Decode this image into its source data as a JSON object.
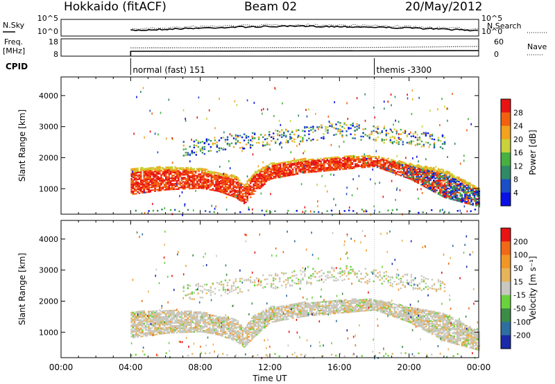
{
  "header": {
    "station": "Hokkaido (fitACF)",
    "beam": "Beam 02",
    "date": "20/May/2012"
  },
  "top_panels": {
    "nsky_label": "N.Sky",
    "nsearch_label": "N.Search",
    "freq_label_1": "Freq.",
    "freq_label_2": "[MHz]",
    "nave_label": "Nave",
    "cpid_label": "CPID",
    "noise_ticks": [
      "10^5",
      "10^0"
    ],
    "freq_ticks": [
      "18",
      "8"
    ],
    "nave_ticks": [
      "60",
      "0"
    ],
    "cpid_segments": [
      {
        "start_h": 4.0,
        "label": "normal (fast) 151"
      },
      {
        "start_h": 18.0,
        "label": "themis -3300"
      }
    ]
  },
  "xaxis": {
    "label": "Time UT",
    "ticks": [
      "00:00",
      "04:00",
      "08:00",
      "12:00",
      "16:00",
      "20:00",
      "00:00"
    ],
    "tick_hours": [
      0,
      4,
      8,
      12,
      16,
      20,
      24
    ]
  },
  "power_panel": {
    "ylabel": "Slant Range [km]",
    "yticks": [
      "1000",
      "2000",
      "3000",
      "4000"
    ],
    "ytick_values": [
      1000,
      2000,
      3000,
      4000
    ],
    "cbar_label": "Power [dB]",
    "cbar_ticks": [
      "4",
      "8",
      "12",
      "16",
      "20",
      "24",
      "28"
    ],
    "cbar_colors": [
      "#0a10e6",
      "#1c4ec8",
      "#2f8a66",
      "#46b040",
      "#c8d23a",
      "#f2a21c",
      "#f26010",
      "#e81414"
    ]
  },
  "velocity_panel": {
    "ylabel": "Slant Range [km]",
    "yticks": [
      "1000",
      "2000",
      "3000",
      "4000"
    ],
    "ytick_values": [
      1000,
      2000,
      3000,
      4000
    ],
    "cbar_label": "Velocity [m s⁻¹]",
    "cbar_ticks": [
      "200",
      "100",
      "50",
      "15",
      "-15",
      "-50",
      "-100",
      "-200"
    ],
    "cbar_colors": [
      "#1a2aa8",
      "#2f6ea0",
      "#3c8c46",
      "#6ad23c",
      "#c8c8c0",
      "#e6b45a",
      "#f29626",
      "#f06818",
      "#e81414"
    ]
  },
  "chart_data": {
    "type": "heatmap",
    "title": "Hokkaido (fitACF)  Beam 02  20/May/2012",
    "xlabel": "Time UT",
    "ylabel": "Slant Range [km]",
    "xlim_hours": [
      0,
      24
    ],
    "ylim_km": [
      180,
      4600
    ],
    "data_start_hour": 4.0,
    "main_echo_band": {
      "hours": [
        4,
        6,
        8,
        9,
        10,
        10.5,
        11,
        12,
        14,
        16,
        18,
        20,
        22,
        24
      ],
      "lower_km": [
        800,
        950,
        1000,
        900,
        700,
        500,
        800,
        1300,
        1500,
        1600,
        1700,
        1300,
        700,
        400
      ],
      "upper_km": [
        1650,
        1700,
        1650,
        1500,
        1400,
        1100,
        1500,
        1800,
        1950,
        2050,
        2050,
        1800,
        1600,
        1000
      ]
    },
    "power_db_range": [
      0,
      30
    ],
    "velocity_ms_range": [
      -200,
      200
    ]
  }
}
